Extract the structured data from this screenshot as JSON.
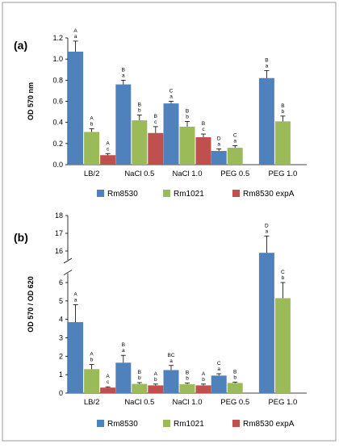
{
  "series_colors": [
    "#4f81bd",
    "#9bbb59",
    "#c0504d"
  ],
  "series_names": [
    "Rm8530",
    "Rm1021",
    "Rm8530 expA"
  ],
  "categories": [
    "LB/2",
    "NaCl 0.5",
    "NaCl 1.0",
    "PEG 0.5",
    "PEG 1.0"
  ],
  "chart_data": [
    {
      "type": "bar",
      "panel": "(a)",
      "ylabel": "OD 570 nm",
      "ylim": [
        0,
        1.2
      ],
      "yticks": [
        "0.0",
        "0.2",
        "0.4",
        "0.6",
        "0.8",
        "1.0",
        "1.2"
      ],
      "categories": [
        "LB/2",
        "NaCl 0.5",
        "NaCl 1.0",
        "PEG 0.5",
        "PEG 1.0"
      ],
      "series": [
        {
          "name": "Rm8530",
          "values": [
            1.07,
            0.76,
            0.58,
            0.13,
            0.82
          ],
          "errors": [
            0.1,
            0.04,
            0.02,
            0.02,
            0.07
          ],
          "letters": [
            [
              "A",
              "a"
            ],
            [
              "B",
              "a"
            ],
            [
              "C",
              "a"
            ],
            [
              "D",
              "a"
            ],
            [
              "B",
              "a"
            ]
          ]
        },
        {
          "name": "Rm1021",
          "values": [
            0.31,
            0.42,
            0.36,
            0.16,
            0.41
          ],
          "errors": [
            0.03,
            0.05,
            0.05,
            0.02,
            0.05
          ],
          "letters": [
            [
              "A",
              "b"
            ],
            [
              "B",
              "b"
            ],
            [
              "B",
              "b"
            ],
            [
              "C",
              "a"
            ],
            [
              "B",
              "b"
            ]
          ]
        },
        {
          "name": "Rm8530 expA",
          "values": [
            0.09,
            0.3,
            0.26,
            null,
            null
          ],
          "errors": [
            0.015,
            0.06,
            0.03,
            null,
            null
          ],
          "letters": [
            [
              "A",
              "c"
            ],
            [
              "B",
              "c"
            ],
            [
              "B",
              "c"
            ],
            null,
            null
          ]
        }
      ],
      "legend": "bottom"
    },
    {
      "type": "bar",
      "panel": "(b)",
      "ylabel": "OD 570 / OD 620",
      "ylim": [
        0,
        18
      ],
      "axis_break": [
        6.5,
        15.5
      ],
      "yticks_lower": [
        "0",
        "1",
        "2",
        "3",
        "4",
        "5",
        "6"
      ],
      "yticks_upper": [
        "16",
        "17",
        "18"
      ],
      "categories": [
        "LB/2",
        "NaCl 0.5",
        "NaCl 1.0",
        "PEG 0.5",
        "PEG 1.0"
      ],
      "series": [
        {
          "name": "Rm8530",
          "values": [
            3.85,
            1.65,
            1.25,
            0.95,
            15.9
          ],
          "errors": [
            0.95,
            0.4,
            0.25,
            0.1,
            0.95
          ],
          "letters": [
            [
              "A",
              "a"
            ],
            [
              "B",
              "a"
            ],
            [
              "BC",
              "a"
            ],
            [
              "C",
              "a"
            ],
            [
              "D",
              "a"
            ]
          ]
        },
        {
          "name": "Rm1021",
          "values": [
            1.3,
            0.5,
            0.48,
            0.55,
            5.15
          ],
          "errors": [
            0.25,
            0.07,
            0.06,
            0.05,
            0.85
          ],
          "letters": [
            [
              "A",
              "b"
            ],
            [
              "B",
              "b"
            ],
            [
              "B",
              "b"
            ],
            [
              "B",
              "b"
            ],
            [
              "C",
              "b"
            ]
          ]
        },
        {
          "name": "Rm8530 expA",
          "values": [
            0.3,
            0.42,
            0.42,
            null,
            null
          ],
          "errors": [
            0.04,
            0.07,
            0.07,
            null,
            null
          ],
          "letters": [
            [
              "A",
              "c"
            ],
            [
              "A",
              "b"
            ],
            [
              "A",
              "b"
            ],
            null,
            null
          ]
        }
      ],
      "legend": "bottom"
    }
  ]
}
